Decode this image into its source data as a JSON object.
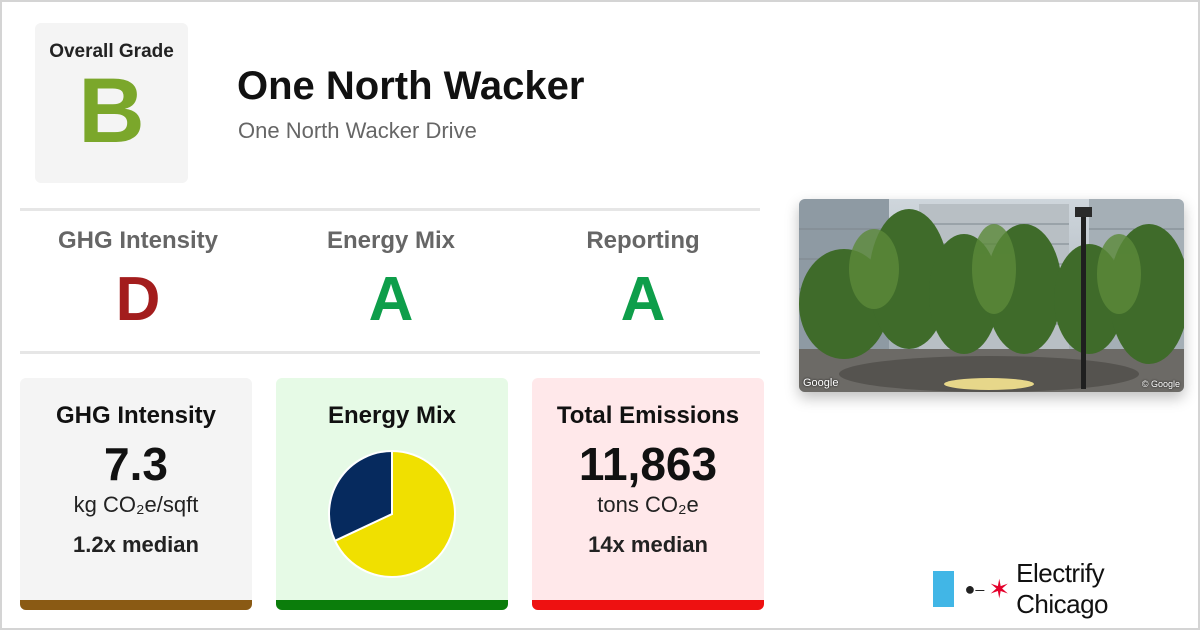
{
  "overall": {
    "label": "Overall Grade",
    "grade": "B",
    "color": "#7ba72b"
  },
  "building": {
    "name": "One North Wacker",
    "address": "One North Wacker Drive"
  },
  "subgrades": [
    {
      "label": "GHG Intensity",
      "grade": "D",
      "color": "#a31d1d"
    },
    {
      "label": "Energy Mix",
      "grade": "A",
      "color": "#0e9e4a"
    },
    {
      "label": "Reporting",
      "grade": "A",
      "color": "#0e9e4a"
    }
  ],
  "cards": {
    "ghg": {
      "title": "GHG Intensity",
      "value": "7.3",
      "unit": "kg CO₂e/sqft",
      "median": "1.2x median",
      "bg": "#f4f4f4",
      "bar": "#8a5a14"
    },
    "mix": {
      "title": "Energy Mix",
      "bg": "#e6fae6",
      "bar": "#0b7d0b"
    },
    "emissions": {
      "title": "Total Emissions",
      "value": "11,863",
      "unit": "tons CO₂e",
      "median": "14x median",
      "bg": "#ffe8ea",
      "bar": "#ee1111"
    }
  },
  "chart_data": {
    "type": "pie",
    "values": [
      0.68,
      0.32
    ],
    "colors": [
      "#f0e000",
      "#062a5e"
    ]
  },
  "photo": {
    "credit": "Google",
    "credit_right": "© Google"
  },
  "brand": {
    "name": "Electrify Chicago",
    "flag_color": "#41b6e6",
    "star_color": "#e4002b"
  }
}
